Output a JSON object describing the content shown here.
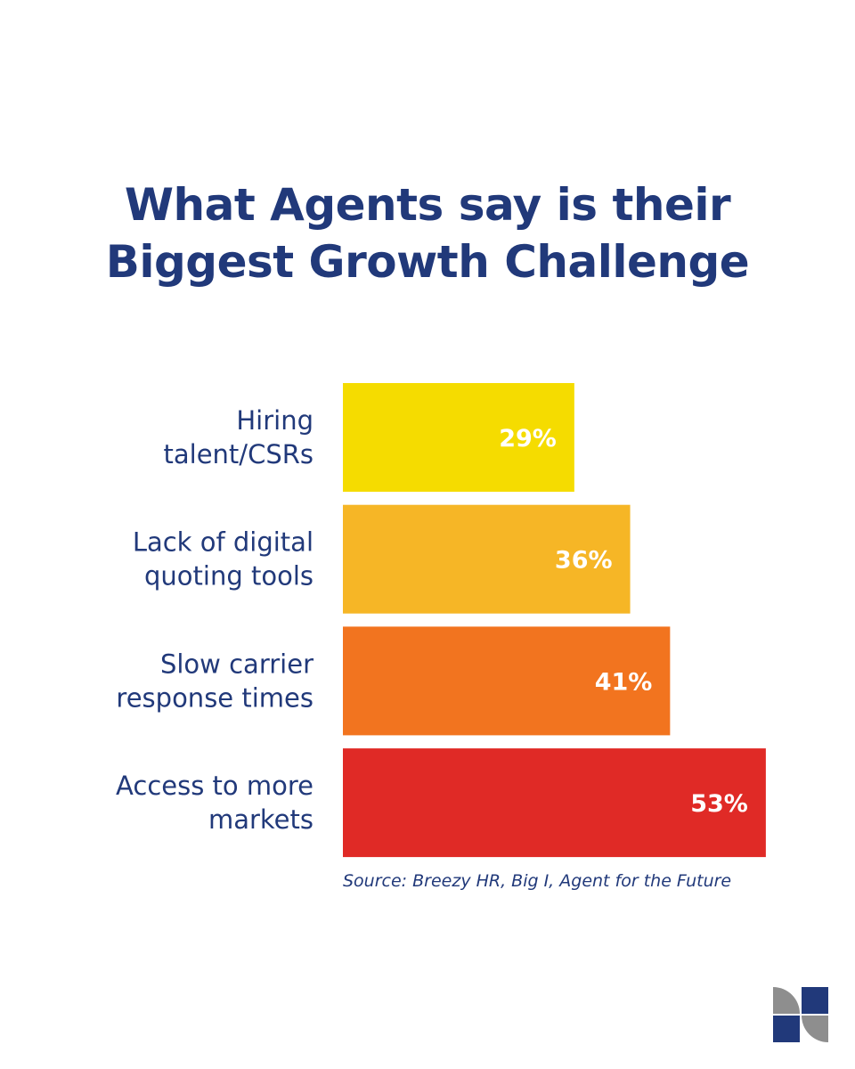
{
  "chart_data": {
    "type": "bar",
    "orientation": "horizontal",
    "title": [
      "What Agents say is their",
      "Biggest Growth Challenge"
    ],
    "categories": [
      [
        "Hiring",
        "talent/CSRs"
      ],
      [
        "Lack of digital",
        "quoting tools"
      ],
      [
        "Slow carrier",
        "response times"
      ],
      [
        "Access to more",
        "markets"
      ]
    ],
    "values": [
      29,
      36,
      41,
      53
    ],
    "value_labels": [
      "29%",
      "36%",
      "41%",
      "53%"
    ],
    "bar_colors": [
      "#f5dc00",
      "#f6b626",
      "#f2741f",
      "#e02a26"
    ],
    "grid": false,
    "axes_visible": false,
    "source": "Source: Breezy HR, Big I, Agent for the Future"
  },
  "colors": {
    "text": "#21397a",
    "logo_navy": "#21397a",
    "logo_grey": "#8e8e8e"
  },
  "logo": "company-logo"
}
